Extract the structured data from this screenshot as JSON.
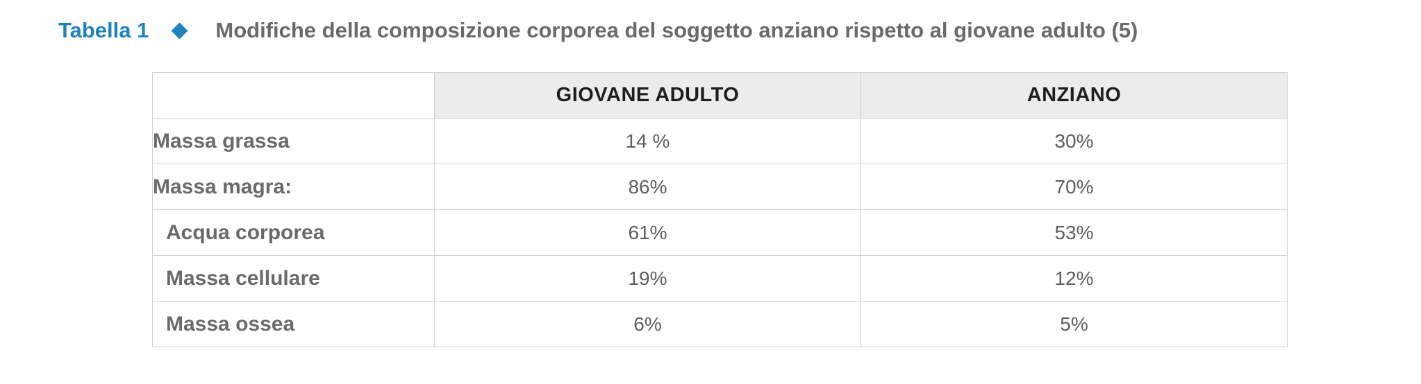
{
  "caption": {
    "label": "Tabella 1",
    "marker_color": "#1f83bd",
    "title": "Modifiche della composizione corporea del soggetto anziano rispetto al giovane adulto (5)"
  },
  "table": {
    "columns": [
      "",
      "GIOVANE ADULTO",
      "ANZIANO"
    ],
    "rows": [
      {
        "label": "Massa grassa",
        "giovane_adulto": "14 %",
        "anziano": "30%",
        "indent": false
      },
      {
        "label": "Massa magra:",
        "giovane_adulto": "86%",
        "anziano": "70%",
        "indent": false
      },
      {
        "label": "Acqua corporea",
        "giovane_adulto": "61%",
        "anziano": "53%",
        "indent": true
      },
      {
        "label": "Massa cellulare",
        "giovane_adulto": "19%",
        "anziano": "12%",
        "indent": true
      },
      {
        "label": "Massa ossea",
        "giovane_adulto": "6%",
        "anziano": "5%",
        "indent": true
      }
    ]
  },
  "colors": {
    "accent": "#1f83bd",
    "text_gray": "#6a6a6a",
    "header_bg": "#ececec",
    "border": "#cfcfcf"
  }
}
